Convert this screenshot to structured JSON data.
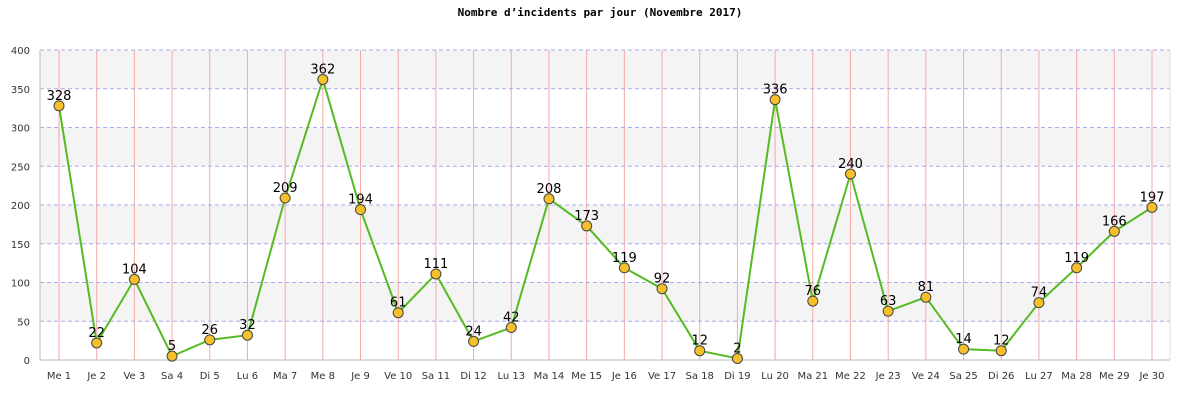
{
  "chart_data": {
    "type": "line",
    "title": "Nombre d’incidents par jour (Novembre 2017)",
    "xlabel": "",
    "ylabel": "",
    "ylim": [
      0,
      400
    ],
    "yticks": [
      0,
      50,
      100,
      150,
      200,
      250,
      300,
      350,
      400
    ],
    "grid": true,
    "legend": "none",
    "categories": [
      "Me 1",
      "Je 2",
      "Ve 3",
      "Sa 4",
      "Di 5",
      "Lu 6",
      "Ma 7",
      "Me 8",
      "Je 9",
      "Ve 10",
      "Sa 11",
      "Di 12",
      "Lu 13",
      "Ma 14",
      "Me 15",
      "Je 16",
      "Ve 17",
      "Sa 18",
      "Di 19",
      "Lu 20",
      "Ma 21",
      "Me 22",
      "Je 23",
      "Ve 24",
      "Sa 25",
      "Di 26",
      "Lu 27",
      "Ma 28",
      "Me 29",
      "Je 30"
    ],
    "series": [
      {
        "values": [
          328,
          22,
          104,
          5,
          26,
          32,
          209,
          362,
          194,
          61,
          111,
          24,
          42,
          208,
          173,
          119,
          92,
          12,
          2,
          336,
          76,
          240,
          63,
          81,
          14,
          12,
          74,
          119,
          166,
          197
        ]
      }
    ],
    "colors": {
      "line": "#55bb22",
      "marker_fill": "#f5c02a",
      "marker_stroke": "#444444",
      "vertical_grid": "#f4a9a9",
      "horizontal_grid": "#aaaaee",
      "band": "#f4f4f4"
    }
  }
}
